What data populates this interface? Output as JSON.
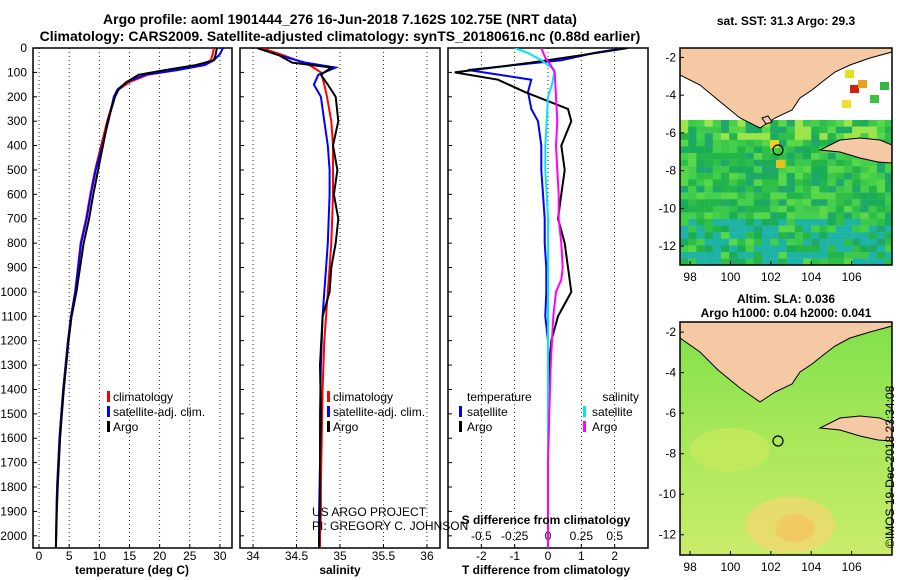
{
  "header": {
    "title1": "Argo profile: aoml 1901444_276 16-Jun-2018 7.162S 102.75E (NRT data)",
    "title2": "Climatology: CARS2009. Satellite-adjusted climatology: synTS_20180616.nc (0.88d earlier)"
  },
  "credit": {
    "project": "US ARGO PROJECT",
    "pi": "PI: GREGORY C. JOHNSON",
    "imos": "©IMOS 19-Dec-2018 23:34:08"
  },
  "colors": {
    "climatology": "#ff0000",
    "satellite": "#0000ff",
    "argo": "#000000",
    "sal_satellite": "#00e5ee",
    "sal_argo": "#ff00ff",
    "land": "#f4c9a4"
  },
  "chart_data": [
    {
      "type": "line",
      "panel": "temperature",
      "xlabel": "temperature (deg C)",
      "ylabel": "",
      "xlim": [
        -1,
        32
      ],
      "ylim": [
        2050,
        0
      ],
      "xticks": [
        0,
        5,
        10,
        15,
        20,
        25,
        30
      ],
      "yticks": [
        0,
        100,
        200,
        300,
        400,
        500,
        600,
        700,
        800,
        900,
        1000,
        1100,
        1200,
        1300,
        1400,
        1500,
        1600,
        1700,
        1800,
        1900,
        2000
      ],
      "legend": [
        "climatology",
        "satellite-adj. clim.",
        "Argo"
      ],
      "series": [
        {
          "name": "climatology",
          "color": "#ff0000",
          "x": [
            29.0,
            28.8,
            28.5,
            27.0,
            23.0,
            18.0,
            15.0,
            13.2,
            12.5,
            11.3,
            10.3,
            9.3,
            8.5,
            7.8,
            6.9,
            6.0,
            5.3,
            4.8,
            4.4,
            4.0,
            3.7,
            3.4,
            3.2,
            3.0,
            2.9,
            2.8
          ],
          "y": [
            0,
            25,
            50,
            70,
            90,
            110,
            140,
            170,
            200,
            300,
            400,
            500,
            600,
            700,
            800,
            1000,
            1100,
            1200,
            1300,
            1400,
            1500,
            1600,
            1700,
            1800,
            1900,
            2050
          ]
        },
        {
          "name": "satellite-adj. clim.",
          "color": "#0000ff",
          "x": [
            30.5,
            30.0,
            29.0,
            27.5,
            23.0,
            17.5,
            14.5,
            13.0,
            12.4,
            11.5,
            10.5,
            9.4,
            8.6,
            7.9,
            7.0,
            6.0,
            5.3,
            4.8,
            4.4,
            4.0,
            3.7,
            3.4,
            3.2,
            3.0,
            2.9,
            2.8
          ],
          "y": [
            0,
            25,
            50,
            70,
            90,
            110,
            140,
            170,
            200,
            300,
            400,
            500,
            600,
            700,
            800,
            1000,
            1100,
            1200,
            1300,
            1400,
            1500,
            1600,
            1700,
            1800,
            1900,
            2050
          ]
        },
        {
          "name": "Argo",
          "color": "#000000",
          "x": [
            29.5,
            29.3,
            29.0,
            26.0,
            21.0,
            16.5,
            14.5,
            13.2,
            12.6,
            11.4,
            10.6,
            9.8,
            9.0,
            8.3,
            7.4,
            6.2,
            5.4,
            4.9,
            4.5,
            4.1,
            3.8,
            3.5,
            3.3,
            3.1,
            2.95,
            2.8
          ],
          "y": [
            0,
            25,
            50,
            70,
            90,
            110,
            140,
            170,
            200,
            300,
            400,
            500,
            600,
            700,
            800,
            1000,
            1100,
            1200,
            1300,
            1400,
            1500,
            1600,
            1700,
            1800,
            1900,
            2050
          ]
        }
      ]
    },
    {
      "type": "line",
      "panel": "salinity",
      "xlabel": "salinity",
      "xlim": [
        33.85,
        36.15
      ],
      "ylim": [
        2050,
        0
      ],
      "xticks": [
        34,
        34.5,
        35,
        35.5,
        36
      ],
      "legend": [
        "climatology",
        "satellite-adj. clim.",
        "Argo"
      ],
      "series": [
        {
          "name": "climatology",
          "color": "#ff0000",
          "x": [
            34.1,
            34.35,
            34.65,
            34.78,
            34.82,
            34.85,
            34.9,
            34.92,
            34.92,
            34.92,
            34.91,
            34.9,
            34.88,
            34.86,
            34.84,
            34.82,
            34.8,
            34.79,
            34.78,
            34.78,
            34.77,
            34.77
          ],
          "y": [
            0,
            30,
            70,
            100,
            150,
            200,
            300,
            400,
            500,
            600,
            700,
            800,
            900,
            1000,
            1100,
            1200,
            1400,
            1600,
            1800,
            1900,
            2000,
            2050
          ]
        },
        {
          "name": "satellite-adj. clim.",
          "color": "#0000ff",
          "x": [
            34.05,
            34.3,
            34.6,
            34.95,
            34.75,
            34.7,
            34.78,
            34.82,
            34.86,
            34.88,
            34.88,
            34.87,
            34.86,
            34.84,
            34.82,
            34.8,
            34.78,
            34.77,
            34.77,
            34.76,
            34.76,
            34.76
          ],
          "y": [
            0,
            30,
            60,
            80,
            110,
            150,
            200,
            300,
            400,
            500,
            600,
            700,
            800,
            900,
            1000,
            1100,
            1300,
            1500,
            1700,
            1900,
            2000,
            2050
          ]
        },
        {
          "name": "Argo",
          "color": "#000000",
          "x": [
            34.05,
            34.3,
            34.45,
            34.9,
            34.78,
            34.86,
            34.95,
            34.98,
            34.92,
            34.97,
            34.93,
            34.98,
            34.95,
            34.9,
            34.88,
            34.8,
            34.77,
            34.78,
            34.77,
            34.77,
            34.76,
            34.76
          ],
          "y": [
            0,
            30,
            60,
            80,
            110,
            150,
            200,
            300,
            400,
            500,
            600,
            700,
            800,
            900,
            1000,
            1100,
            1300,
            1500,
            1700,
            1900,
            2000,
            2050
          ]
        }
      ]
    },
    {
      "type": "line",
      "panel": "difference",
      "xlabel": "T difference from climatology",
      "xlabel_top": "S difference from climatology",
      "xlim": [
        -3,
        3
      ],
      "ylim": [
        2050,
        0
      ],
      "xticks": [
        -2,
        -1,
        0,
        1,
        2
      ],
      "sticks": [
        -0.5,
        -0.25,
        0,
        0.25,
        0.5
      ],
      "legend_left": {
        "title": "temperature",
        "items": [
          "satellite",
          "Argo"
        ]
      },
      "legend_right": {
        "title": "salinity",
        "items": [
          "satellite",
          "Argo"
        ]
      },
      "series": [
        {
          "name": "temperature satellite",
          "color": "#0000ff",
          "x": [
            2.3,
            1.4,
            0.4,
            -2.4,
            -0.5,
            -0.6,
            -0.5,
            -0.3,
            -0.2,
            -0.2,
            -0.15,
            -0.1,
            -0.1,
            -0.05,
            -0.05,
            -0.08,
            0,
            0.02,
            0,
            0,
            0,
            0,
            0
          ],
          "y": [
            0,
            20,
            50,
            90,
            130,
            180,
            250,
            300,
            400,
            500,
            600,
            700,
            800,
            900,
            1000,
            1100,
            1200,
            1300,
            1400,
            1600,
            1800,
            1900,
            2050
          ]
        },
        {
          "name": "temperature Argo",
          "color": "#000000",
          "x": [
            2.4,
            1.0,
            -0.5,
            -2.8,
            -1.5,
            -0.7,
            0.6,
            0.7,
            0.4,
            0.5,
            0.4,
            0.3,
            0.5,
            0.6,
            0.7,
            0.3,
            0.1,
            0.05,
            0.02,
            0,
            0,
            0,
            0
          ],
          "y": [
            0,
            30,
            60,
            100,
            130,
            180,
            250,
            300,
            400,
            500,
            600,
            700,
            800,
            900,
            1000,
            1100,
            1200,
            1300,
            1400,
            1600,
            1800,
            1900,
            2050
          ]
        },
        {
          "name": "salinity satellite",
          "color": "#00e5ee",
          "x": [
            -0.25,
            -0.15,
            -0.05,
            0.05,
            0.03,
            0.0,
            -0.01,
            -0.02,
            -0.02,
            -0.01,
            0,
            0,
            0,
            0,
            0,
            0,
            0,
            0,
            0,
            0,
            0
          ],
          "y": [
            0,
            20,
            50,
            90,
            150,
            200,
            300,
            400,
            500,
            600,
            700,
            800,
            900,
            1000,
            1100,
            1300,
            1500,
            1700,
            1800,
            1900,
            2050
          ]
        },
        {
          "name": "salinity Argo",
          "color": "#ff00ff",
          "x": [
            -0.05,
            -0.02,
            0.02,
            0.05,
            0.06,
            0.07,
            0.06,
            0.07,
            0.08,
            0.08,
            0.1,
            0.11,
            0.1,
            0.06,
            0.04,
            0.02,
            0.01,
            0,
            0,
            0,
            0
          ],
          "y": [
            0,
            40,
            70,
            100,
            200,
            300,
            400,
            500,
            600,
            700,
            800,
            900,
            950,
            1000,
            1100,
            1300,
            1500,
            1700,
            1800,
            1900,
            2050
          ]
        }
      ]
    },
    {
      "type": "heatmap",
      "panel": "SST map",
      "title": "sat. SST: 31.3 Argo: 29.3",
      "xticks": [
        98,
        100,
        102,
        104,
        106
      ],
      "yticks": [
        -2,
        -4,
        -6,
        -8,
        -10,
        -12
      ],
      "xlim": [
        97.5,
        108
      ],
      "ylim": [
        -13,
        -1.5
      ],
      "argo_position": [
        102.75,
        -7.162
      ]
    },
    {
      "type": "heatmap",
      "panel": "SLA map",
      "title": "Altim. SLA: 0.036",
      "subtitle": "Argo h1000: 0.04 h2000: 0.041",
      "xticks": [
        98,
        100,
        102,
        104,
        106
      ],
      "yticks": [
        -2,
        -4,
        -6,
        -8,
        -10,
        -12
      ],
      "xlim": [
        97.5,
        108
      ],
      "ylim": [
        -13,
        -1.5
      ],
      "argo_position": [
        102.75,
        -7.162
      ]
    }
  ]
}
